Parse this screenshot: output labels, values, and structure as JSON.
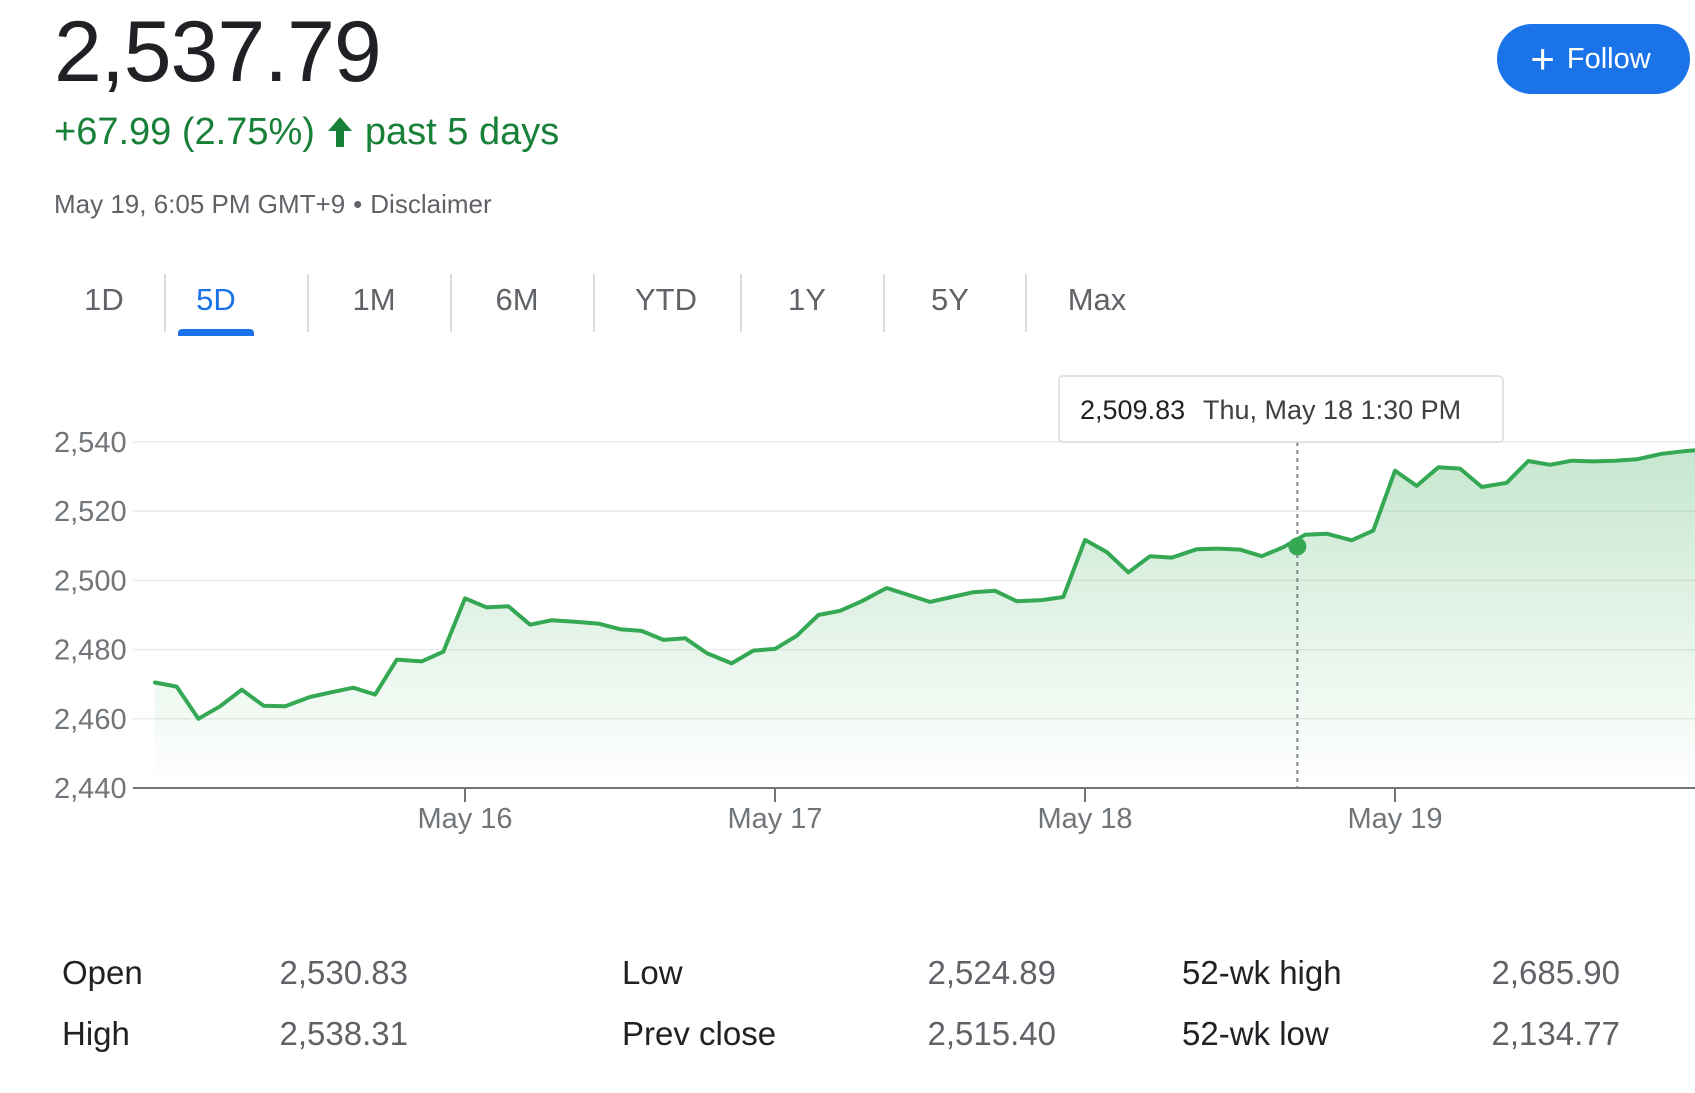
{
  "header": {
    "price": "2,537.79",
    "change": "+67.99 (2.75%)",
    "period": "past 5 days",
    "timestamp": "May 19, 6:05 PM GMT+9",
    "separator": "•",
    "disclaimer": "Disclaimer",
    "follow_label": "Follow",
    "colors": {
      "up": "#188038",
      "accent": "#1a73e8"
    }
  },
  "tabs": [
    {
      "label": "1D",
      "active": false
    },
    {
      "label": "5D",
      "active": true
    },
    {
      "label": "1M",
      "active": false
    },
    {
      "label": "6M",
      "active": false
    },
    {
      "label": "YTD",
      "active": false
    },
    {
      "label": "1Y",
      "active": false
    },
    {
      "label": "5Y",
      "active": false
    },
    {
      "label": "Max",
      "active": false
    }
  ],
  "chart_data": {
    "type": "area",
    "x_labels": [
      "May 16",
      "May 17",
      "May 18",
      "May 19"
    ],
    "y_ticks": [
      "2,540",
      "2,520",
      "2,500",
      "2,480",
      "2,460",
      "2,440"
    ],
    "ylim": [
      2440,
      2540
    ],
    "line_color": "#34a853",
    "x_range": [
      0,
      4.99
    ],
    "series": [
      {
        "values": [
          [
            0.0,
            2470.5
          ],
          [
            0.07,
            2469.3
          ],
          [
            0.14,
            2460.0
          ],
          [
            0.21,
            2463.6
          ],
          [
            0.28,
            2468.4
          ],
          [
            0.35,
            2463.8
          ],
          [
            0.42,
            2463.6
          ],
          [
            0.5,
            2466.3
          ],
          [
            0.57,
            2467.7
          ],
          [
            0.64,
            2469.0
          ],
          [
            0.71,
            2467.0
          ],
          [
            0.78,
            2477.1
          ],
          [
            0.86,
            2476.6
          ],
          [
            0.93,
            2479.4
          ],
          [
            1.0,
            2494.8
          ],
          [
            1.07,
            2492.2
          ],
          [
            1.14,
            2492.5
          ],
          [
            1.21,
            2487.2
          ],
          [
            1.28,
            2488.5
          ],
          [
            1.36,
            2488.0
          ],
          [
            1.43,
            2487.5
          ],
          [
            1.5,
            2485.9
          ],
          [
            1.57,
            2485.4
          ],
          [
            1.64,
            2482.8
          ],
          [
            1.71,
            2483.3
          ],
          [
            1.78,
            2479.0
          ],
          [
            1.86,
            2476.0
          ],
          [
            1.93,
            2479.7
          ],
          [
            2.0,
            2480.2
          ],
          [
            2.07,
            2484.0
          ],
          [
            2.14,
            2490.0
          ],
          [
            2.21,
            2491.2
          ],
          [
            2.28,
            2494.0
          ],
          [
            2.36,
            2497.8
          ],
          [
            2.43,
            2495.8
          ],
          [
            2.5,
            2493.8
          ],
          [
            2.57,
            2495.2
          ],
          [
            2.64,
            2496.6
          ],
          [
            2.71,
            2497.0
          ],
          [
            2.78,
            2494.0
          ],
          [
            2.86,
            2494.3
          ],
          [
            2.93,
            2495.2
          ],
          [
            3.0,
            2511.7
          ],
          [
            3.07,
            2508.2
          ],
          [
            3.14,
            2502.3
          ],
          [
            3.21,
            2507.0
          ],
          [
            3.28,
            2506.6
          ],
          [
            3.36,
            2509.0
          ],
          [
            3.43,
            2509.2
          ],
          [
            3.5,
            2508.9
          ],
          [
            3.57,
            2507.0
          ],
          [
            3.64,
            2509.6
          ],
          [
            3.71,
            2513.2
          ],
          [
            3.78,
            2513.5
          ],
          [
            3.86,
            2511.6
          ],
          [
            3.93,
            2514.4
          ],
          [
            4.0,
            2531.7
          ],
          [
            4.07,
            2527.3
          ],
          [
            4.14,
            2532.7
          ],
          [
            4.21,
            2532.3
          ],
          [
            4.28,
            2527.0
          ],
          [
            4.36,
            2528.2
          ],
          [
            4.43,
            2534.5
          ],
          [
            4.5,
            2533.4
          ],
          [
            4.57,
            2534.6
          ],
          [
            4.64,
            2534.4
          ],
          [
            4.71,
            2534.6
          ],
          [
            4.78,
            2535.0
          ],
          [
            4.86,
            2536.6
          ],
          [
            4.93,
            2537.3
          ],
          [
            4.99,
            2537.8
          ]
        ]
      }
    ],
    "hover": {
      "x": 3.685,
      "value": 2509.83,
      "value_label": "2,509.83",
      "time_label": "Thu, May 18 1:30 PM"
    }
  },
  "stats": [
    {
      "label": "Open",
      "value": "2,530.83"
    },
    {
      "label": "High",
      "value": "2,538.31"
    },
    {
      "label": "Low",
      "value": "2,524.89"
    },
    {
      "label": "Prev close",
      "value": "2,515.40"
    },
    {
      "label": "52-wk high",
      "value": "2,685.90"
    },
    {
      "label": "52-wk low",
      "value": "2,134.77"
    }
  ]
}
